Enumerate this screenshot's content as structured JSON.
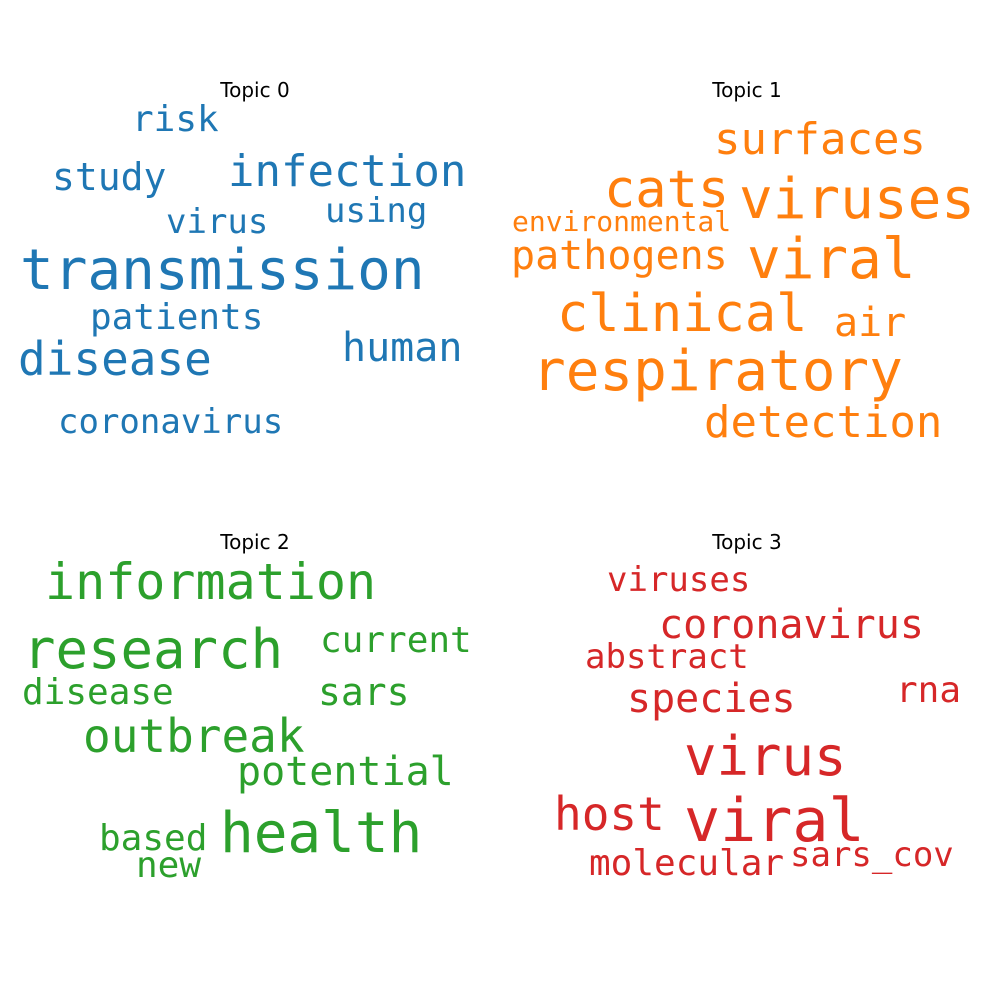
{
  "topics": [
    {
      "title": "Topic 0",
      "color": "#1f77b4",
      "words": [
        "transmission",
        "infection",
        "disease",
        "human",
        "study",
        "risk",
        "using",
        "virus",
        "patients",
        "coronavirus"
      ]
    },
    {
      "title": "Topic 1",
      "color": "#ff7f0e",
      "words": [
        "respiratory",
        "viruses",
        "cats",
        "viral",
        "clinical",
        "surfaces",
        "pathogens",
        "environmental",
        "air",
        "detection"
      ]
    },
    {
      "title": "Topic 2",
      "color": "#2ca02c",
      "words": [
        "information",
        "research",
        "health",
        "outbreak",
        "current",
        "disease",
        "sars",
        "potential",
        "based",
        "new"
      ]
    },
    {
      "title": "Topic 3",
      "color": "#d62728",
      "words": [
        "viruses",
        "coronavirus",
        "abstract",
        "rna",
        "species",
        "virus",
        "host",
        "viral",
        "molecular",
        "sars_cov"
      ]
    }
  ]
}
